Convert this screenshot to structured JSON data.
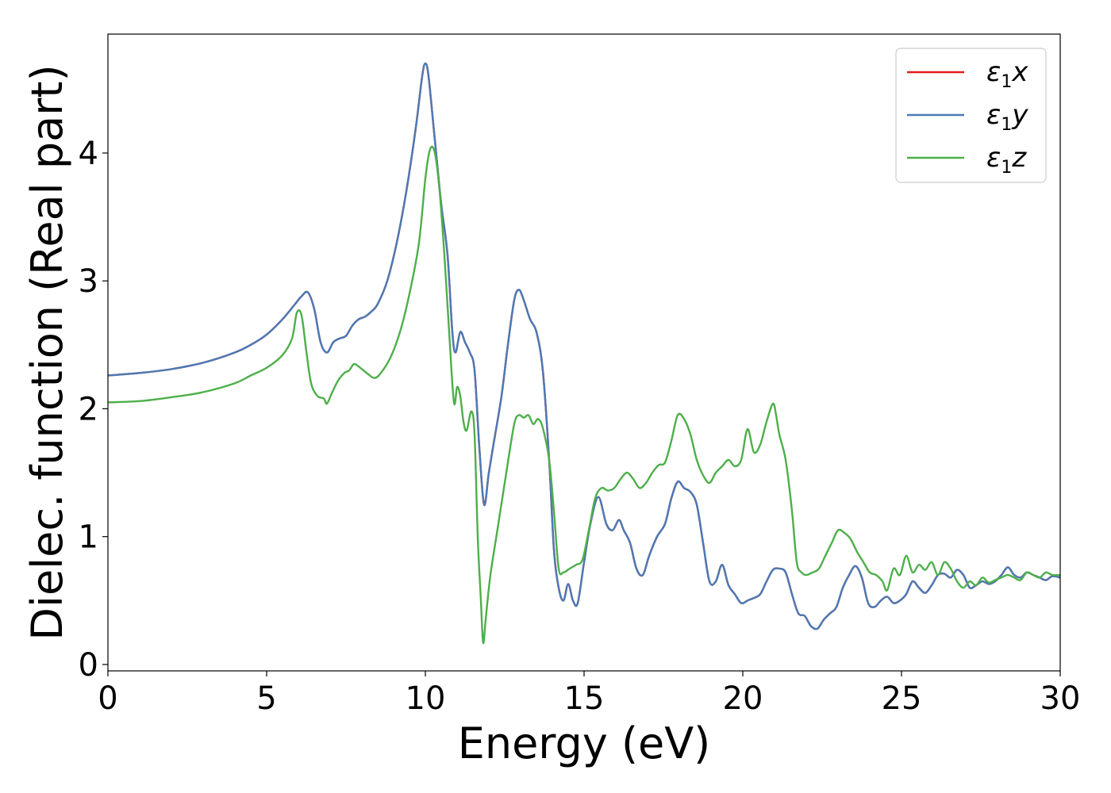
{
  "chart_data": {
    "type": "line",
    "xlabel": "Energy (eV)",
    "ylabel": "Dielec. function (Real part)",
    "xlim": [
      0,
      30
    ],
    "ylim": [
      -0.05,
      4.93
    ],
    "xticks": [
      0,
      5,
      10,
      15,
      20,
      25,
      30
    ],
    "yticks": [
      0,
      1,
      2,
      3,
      4
    ],
    "grid": false,
    "legend_position": "top-right",
    "series": [
      {
        "name": "ε1x",
        "legend": {
          "base": "ε",
          "sub": "1",
          "var": "x"
        },
        "color": "#e41a1c",
        "x": [
          0,
          1,
          2,
          3,
          4,
          4.5,
          5,
          5.5,
          5.9,
          6.1,
          6.3,
          6.5,
          6.7,
          6.9,
          7.1,
          7.3,
          7.5,
          7.7,
          7.9,
          8.1,
          8.3,
          8.5,
          8.8,
          9.1,
          9.4,
          9.7,
          9.9,
          10.0,
          10.1,
          10.3,
          10.5,
          10.7,
          10.85,
          10.95,
          11.1,
          11.25,
          11.4,
          11.55,
          11.7,
          11.85,
          12.0,
          12.2,
          12.4,
          12.6,
          12.8,
          12.95,
          13.1,
          13.3,
          13.5,
          13.7,
          13.9,
          14.05,
          14.2,
          14.35,
          14.5,
          14.65,
          14.8,
          15.0,
          15.2,
          15.45,
          15.7,
          15.9,
          16.1,
          16.25,
          16.45,
          16.65,
          16.85,
          17.05,
          17.3,
          17.55,
          17.75,
          17.95,
          18.15,
          18.35,
          18.55,
          18.75,
          18.95,
          19.15,
          19.35,
          19.55,
          19.75,
          19.95,
          20.15,
          20.35,
          20.55,
          20.75,
          20.95,
          21.15,
          21.35,
          21.55,
          21.75,
          21.95,
          22.15,
          22.35,
          22.55,
          22.75,
          22.95,
          23.15,
          23.35,
          23.55,
          23.75,
          23.95,
          24.15,
          24.35,
          24.55,
          24.75,
          24.95,
          25.15,
          25.35,
          25.55,
          25.75,
          25.95,
          26.15,
          26.35,
          26.55,
          26.75,
          26.95,
          27.15,
          27.35,
          27.55,
          27.75,
          27.95,
          28.15,
          28.35,
          28.55,
          28.75,
          28.95,
          29.15,
          29.35,
          29.55,
          29.75,
          30.0
        ],
        "y": [
          2.26,
          2.28,
          2.31,
          2.36,
          2.44,
          2.5,
          2.58,
          2.7,
          2.82,
          2.88,
          2.91,
          2.78,
          2.52,
          2.44,
          2.52,
          2.55,
          2.57,
          2.65,
          2.7,
          2.72,
          2.76,
          2.82,
          3.0,
          3.3,
          3.7,
          4.2,
          4.6,
          4.7,
          4.6,
          4.1,
          3.6,
          3.2,
          2.6,
          2.44,
          2.6,
          2.52,
          2.44,
          2.3,
          1.7,
          1.25,
          1.5,
          1.8,
          2.1,
          2.5,
          2.85,
          2.93,
          2.85,
          2.7,
          2.6,
          2.3,
          1.6,
          0.9,
          0.6,
          0.5,
          0.63,
          0.5,
          0.48,
          0.8,
          1.1,
          1.31,
          1.1,
          1.05,
          1.13,
          1.05,
          0.95,
          0.75,
          0.7,
          0.85,
          1.0,
          1.1,
          1.3,
          1.43,
          1.38,
          1.35,
          1.25,
          0.95,
          0.65,
          0.65,
          0.78,
          0.62,
          0.55,
          0.48,
          0.5,
          0.52,
          0.55,
          0.65,
          0.74,
          0.75,
          0.72,
          0.55,
          0.4,
          0.38,
          0.3,
          0.28,
          0.35,
          0.4,
          0.45,
          0.6,
          0.7,
          0.77,
          0.68,
          0.48,
          0.45,
          0.5,
          0.53,
          0.48,
          0.5,
          0.55,
          0.65,
          0.6,
          0.56,
          0.62,
          0.7,
          0.71,
          0.68,
          0.74,
          0.7,
          0.6,
          0.62,
          0.65,
          0.63,
          0.65,
          0.7,
          0.76,
          0.7,
          0.68,
          0.72,
          0.7,
          0.68,
          0.66,
          0.69,
          0.68
        ]
      },
      {
        "name": "ε1y",
        "legend": {
          "base": "ε",
          "sub": "1",
          "var": "y"
        },
        "color": "#4a7ab5",
        "x": [
          0,
          1,
          2,
          3,
          4,
          4.5,
          5,
          5.5,
          5.9,
          6.1,
          6.3,
          6.5,
          6.7,
          6.9,
          7.1,
          7.3,
          7.5,
          7.7,
          7.9,
          8.1,
          8.3,
          8.5,
          8.8,
          9.1,
          9.4,
          9.7,
          9.9,
          10.0,
          10.1,
          10.3,
          10.5,
          10.7,
          10.85,
          10.95,
          11.1,
          11.25,
          11.4,
          11.55,
          11.7,
          11.85,
          12.0,
          12.2,
          12.4,
          12.6,
          12.8,
          12.95,
          13.1,
          13.3,
          13.5,
          13.7,
          13.9,
          14.05,
          14.2,
          14.35,
          14.5,
          14.65,
          14.8,
          15.0,
          15.2,
          15.45,
          15.7,
          15.9,
          16.1,
          16.25,
          16.45,
          16.65,
          16.85,
          17.05,
          17.3,
          17.55,
          17.75,
          17.95,
          18.15,
          18.35,
          18.55,
          18.75,
          18.95,
          19.15,
          19.35,
          19.55,
          19.75,
          19.95,
          20.15,
          20.35,
          20.55,
          20.75,
          20.95,
          21.15,
          21.35,
          21.55,
          21.75,
          21.95,
          22.15,
          22.35,
          22.55,
          22.75,
          22.95,
          23.15,
          23.35,
          23.55,
          23.75,
          23.95,
          24.15,
          24.35,
          24.55,
          24.75,
          24.95,
          25.15,
          25.35,
          25.55,
          25.75,
          25.95,
          26.15,
          26.35,
          26.55,
          26.75,
          26.95,
          27.15,
          27.35,
          27.55,
          27.75,
          27.95,
          28.15,
          28.35,
          28.55,
          28.75,
          28.95,
          29.15,
          29.35,
          29.55,
          29.75,
          30.0
        ],
        "y": [
          2.26,
          2.28,
          2.31,
          2.36,
          2.44,
          2.5,
          2.58,
          2.7,
          2.82,
          2.88,
          2.91,
          2.78,
          2.52,
          2.44,
          2.52,
          2.55,
          2.57,
          2.65,
          2.7,
          2.72,
          2.76,
          2.82,
          3.0,
          3.3,
          3.7,
          4.2,
          4.6,
          4.7,
          4.6,
          4.1,
          3.6,
          3.2,
          2.6,
          2.44,
          2.6,
          2.52,
          2.44,
          2.3,
          1.7,
          1.25,
          1.5,
          1.8,
          2.1,
          2.5,
          2.85,
          2.93,
          2.85,
          2.7,
          2.6,
          2.3,
          1.6,
          0.9,
          0.6,
          0.5,
          0.63,
          0.5,
          0.48,
          0.8,
          1.1,
          1.31,
          1.1,
          1.05,
          1.13,
          1.05,
          0.95,
          0.75,
          0.7,
          0.85,
          1.0,
          1.1,
          1.3,
          1.43,
          1.38,
          1.35,
          1.25,
          0.95,
          0.65,
          0.65,
          0.78,
          0.62,
          0.55,
          0.48,
          0.5,
          0.52,
          0.55,
          0.65,
          0.74,
          0.75,
          0.72,
          0.55,
          0.4,
          0.38,
          0.3,
          0.28,
          0.35,
          0.4,
          0.45,
          0.6,
          0.7,
          0.77,
          0.68,
          0.48,
          0.45,
          0.5,
          0.53,
          0.48,
          0.5,
          0.55,
          0.65,
          0.6,
          0.56,
          0.62,
          0.7,
          0.71,
          0.68,
          0.74,
          0.7,
          0.6,
          0.62,
          0.65,
          0.63,
          0.65,
          0.7,
          0.76,
          0.7,
          0.68,
          0.72,
          0.7,
          0.68,
          0.66,
          0.69,
          0.68
        ]
      },
      {
        "name": "ε1z",
        "legend": {
          "base": "ε",
          "sub": "1",
          "var": "z"
        },
        "color": "#4daf4a",
        "x": [
          0,
          1,
          2,
          3,
          4,
          4.5,
          5,
          5.5,
          5.8,
          5.95,
          6.1,
          6.25,
          6.4,
          6.6,
          6.8,
          6.9,
          7.05,
          7.25,
          7.45,
          7.6,
          7.75,
          7.9,
          8.05,
          8.2,
          8.4,
          8.6,
          8.9,
          9.2,
          9.5,
          9.8,
          10.0,
          10.15,
          10.3,
          10.45,
          10.6,
          10.75,
          10.9,
          11.0,
          11.1,
          11.2,
          11.3,
          11.45,
          11.55,
          11.65,
          11.75,
          11.82,
          11.9,
          12.05,
          12.3,
          12.55,
          12.8,
          12.95,
          13.1,
          13.25,
          13.4,
          13.55,
          13.7,
          13.9,
          14.05,
          14.2,
          14.35,
          14.55,
          14.75,
          14.95,
          15.15,
          15.35,
          15.55,
          15.75,
          15.95,
          16.15,
          16.35,
          16.55,
          16.75,
          16.95,
          17.15,
          17.35,
          17.55,
          17.75,
          17.95,
          18.15,
          18.35,
          18.55,
          18.75,
          18.95,
          19.15,
          19.35,
          19.55,
          19.75,
          19.95,
          20.15,
          20.35,
          20.55,
          20.75,
          20.95,
          21.05,
          21.15,
          21.35,
          21.55,
          21.7,
          21.85,
          22.0,
          22.2,
          22.4,
          22.6,
          22.8,
          23.0,
          23.2,
          23.4,
          23.6,
          23.8,
          24.0,
          24.2,
          24.4,
          24.55,
          24.75,
          24.95,
          25.15,
          25.35,
          25.55,
          25.75,
          25.95,
          26.15,
          26.35,
          26.55,
          26.75,
          26.95,
          27.15,
          27.35,
          27.55,
          27.75,
          27.95,
          28.15,
          28.35,
          28.55,
          28.75,
          28.95,
          29.15,
          29.35,
          29.55,
          29.75,
          30.0
        ],
        "y": [
          2.05,
          2.06,
          2.09,
          2.13,
          2.2,
          2.26,
          2.32,
          2.42,
          2.55,
          2.75,
          2.73,
          2.45,
          2.2,
          2.1,
          2.08,
          2.04,
          2.12,
          2.22,
          2.28,
          2.3,
          2.35,
          2.33,
          2.3,
          2.27,
          2.24,
          2.28,
          2.4,
          2.6,
          2.9,
          3.3,
          3.8,
          4.03,
          4.0,
          3.7,
          3.2,
          2.6,
          2.05,
          2.17,
          2.1,
          1.9,
          1.83,
          1.98,
          1.8,
          1.0,
          0.5,
          0.17,
          0.35,
          0.7,
          1.1,
          1.5,
          1.88,
          1.95,
          1.93,
          1.95,
          1.88,
          1.92,
          1.85,
          1.6,
          1.2,
          0.75,
          0.72,
          0.75,
          0.78,
          0.82,
          1.05,
          1.3,
          1.38,
          1.36,
          1.38,
          1.45,
          1.5,
          1.45,
          1.38,
          1.42,
          1.5,
          1.56,
          1.58,
          1.75,
          1.95,
          1.92,
          1.8,
          1.6,
          1.48,
          1.42,
          1.5,
          1.55,
          1.6,
          1.55,
          1.6,
          1.84,
          1.66,
          1.72,
          1.9,
          2.04,
          1.95,
          1.8,
          1.6,
          1.2,
          0.8,
          0.72,
          0.7,
          0.72,
          0.75,
          0.85,
          0.95,
          1.05,
          1.03,
          0.98,
          0.88,
          0.8,
          0.72,
          0.7,
          0.65,
          0.58,
          0.75,
          0.7,
          0.85,
          0.72,
          0.78,
          0.74,
          0.8,
          0.7,
          0.8,
          0.75,
          0.65,
          0.6,
          0.65,
          0.62,
          0.68,
          0.64,
          0.66,
          0.68,
          0.7,
          0.68,
          0.66,
          0.72,
          0.7,
          0.68,
          0.72,
          0.7,
          0.7
        ]
      }
    ]
  }
}
